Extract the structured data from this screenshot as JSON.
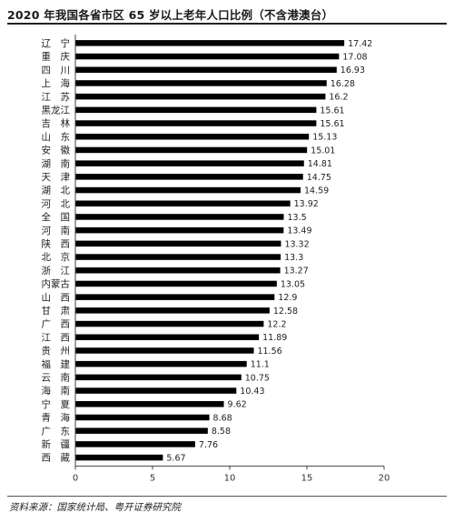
{
  "header": {
    "title": "2020 年我国各省市区 65 岁以上老年人口比例（不含港澳台）"
  },
  "footer": {
    "source": "资料来源：国家统计局、粤开证券研究院"
  },
  "colors": {
    "bar": "#000000",
    "axis": "#444444",
    "text": "#222222"
  },
  "chart_data": {
    "type": "bar",
    "orientation": "horizontal",
    "title": "2020 年我国各省市区 65 岁以上老年人口比例（不含港澳台）",
    "xlabel": "",
    "ylabel": "",
    "xlim": [
      0,
      20
    ],
    "xticks": [
      0,
      5,
      10,
      15,
      20
    ],
    "grid": false,
    "categories": [
      "辽　宁",
      "重　庆",
      "四　川",
      "上　海",
      "江　苏",
      "黑龙江",
      "吉　林",
      "山　东",
      "安　徽",
      "湖　南",
      "天　津",
      "湖　北",
      "河　北",
      "全　国",
      "河　南",
      "陕　西",
      "北　京",
      "浙　江",
      "内蒙古",
      "山　西",
      "甘　肃",
      "广　西",
      "江　西",
      "贵　州",
      "福　建",
      "云　南",
      "海　南",
      "宁　夏",
      "青　海",
      "广　东",
      "新　疆",
      "西　藏"
    ],
    "values": [
      17.42,
      17.08,
      16.93,
      16.28,
      16.2,
      15.61,
      15.61,
      15.13,
      15.01,
      14.81,
      14.75,
      14.59,
      13.92,
      13.5,
      13.49,
      13.32,
      13.3,
      13.27,
      13.05,
      12.9,
      12.58,
      12.2,
      11.89,
      11.56,
      11.1,
      10.75,
      10.43,
      9.62,
      8.68,
      8.58,
      7.76,
      5.67
    ],
    "value_labels": [
      "17.42",
      "17.08",
      "16.93",
      "16.28",
      "16.2",
      "15.61",
      "15.61",
      "15.13",
      "15.01",
      "14.81",
      "14.75",
      "14.59",
      "13.92",
      "13.5",
      "13.49",
      "13.32",
      "13.3",
      "13.27",
      "13.05",
      "12.9",
      "12.58",
      "12.2",
      "11.89",
      "11.56",
      "11.1",
      "10.75",
      "10.43",
      "9.62",
      "8.68",
      "8.58",
      "7.76",
      "5.67"
    ]
  }
}
